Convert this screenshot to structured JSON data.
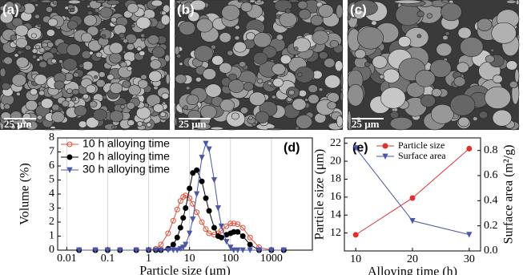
{
  "panels": [
    {
      "label": "(a)",
      "scale_bar": "25 μm"
    },
    {
      "label": "(b)",
      "scale_bar": "25 μm"
    },
    {
      "label": "(c)",
      "scale_bar": "25 μm"
    }
  ],
  "chart_data": [
    {
      "type": "line",
      "panel_label": "(d)",
      "x_label": "Particle size (μm)",
      "y_label": "Volume (%)",
      "log_x": true,
      "grid": true,
      "legend": "upper-left",
      "xlim": [
        0.006,
        10000
      ],
      "xticks": [
        0.01,
        0.1,
        1,
        10,
        100,
        1000
      ],
      "ylim": [
        0,
        8
      ],
      "yticks": [
        0,
        1,
        2,
        3,
        4,
        5,
        6,
        7,
        8
      ],
      "x": [
        0.02,
        0.05,
        0.1,
        0.2,
        0.5,
        1,
        1.5,
        2,
        3,
        4,
        5,
        6,
        7,
        8,
        10,
        12,
        15,
        20,
        25,
        30,
        40,
        50,
        60,
        80,
        100,
        120,
        150,
        200,
        300,
        500,
        1000,
        2000
      ],
      "series": [
        {
          "name": "10 h alloying time",
          "color": "#e0503a",
          "marker": "circle-open",
          "values": [
            0,
            0,
            0,
            0,
            0,
            0,
            0.1,
            0.4,
            1.2,
            2.1,
            2.9,
            3.5,
            3.8,
            3.9,
            3.7,
            3.3,
            2.7,
            2.0,
            1.5,
            1.2,
            1.1,
            1.2,
            1.4,
            1.7,
            1.9,
            1.9,
            1.85,
            1.6,
            0.9,
            0.2,
            0,
            0
          ]
        },
        {
          "name": "20 h alloying time",
          "color": "#000000",
          "marker": "circle",
          "values": [
            0,
            0,
            0,
            0,
            0,
            0,
            0,
            0,
            0.1,
            0.4,
            0.9,
            1.6,
            2.3,
            3.0,
            4.4,
            5.5,
            5.7,
            4.9,
            3.7,
            2.8,
            1.6,
            1.0,
            0.9,
            1.1,
            1.2,
            1.3,
            1.3,
            1.0,
            0.4,
            0,
            0,
            0
          ]
        },
        {
          "name": "30 h alloying time",
          "color": "#4a56a8",
          "marker": "triangle-down",
          "values": [
            0,
            0,
            0,
            0,
            0,
            0,
            0,
            0,
            0,
            0,
            0,
            0.1,
            0.2,
            0.4,
            1.2,
            2.2,
            4.0,
            6.6,
            7.6,
            7.2,
            5.0,
            3.0,
            1.7,
            0.6,
            0.2,
            0,
            0,
            0,
            0,
            0,
            0,
            0
          ]
        }
      ]
    },
    {
      "type": "line",
      "panel_label": "(e)",
      "x_label": "Alloying time (h)",
      "y_label": "Particle size (μm)",
      "y2_label": "Surface area (m²/g)",
      "legend": "upper-left",
      "xlim": [
        8,
        32
      ],
      "xticks": [
        10,
        20,
        30
      ],
      "ylim": [
        10,
        22.6
      ],
      "yticks": [
        12,
        14,
        16,
        18,
        20,
        22
      ],
      "y2lim": [
        0,
        0.9
      ],
      "y2ticks": [
        {
          "value": 0,
          "label": "0.0"
        },
        {
          "value": 0.2,
          "label": "0.2"
        },
        {
          "value": 0.4,
          "label": "0.4"
        },
        {
          "value": 0.6,
          "label": "0.6"
        },
        {
          "value": 0.8,
          "label": "0.8"
        }
      ],
      "x": [
        10,
        20,
        30
      ],
      "series": [
        {
          "name": "Particle size",
          "color": "#e03030",
          "marker": "circle",
          "values": [
            11.8,
            15.9,
            21.4
          ]
        },
        {
          "name": "Surface area",
          "color": "#4a56a8",
          "marker": "triangle-down",
          "axis": "y2",
          "values": [
            0.82,
            0.24,
            0.13
          ]
        }
      ]
    }
  ]
}
